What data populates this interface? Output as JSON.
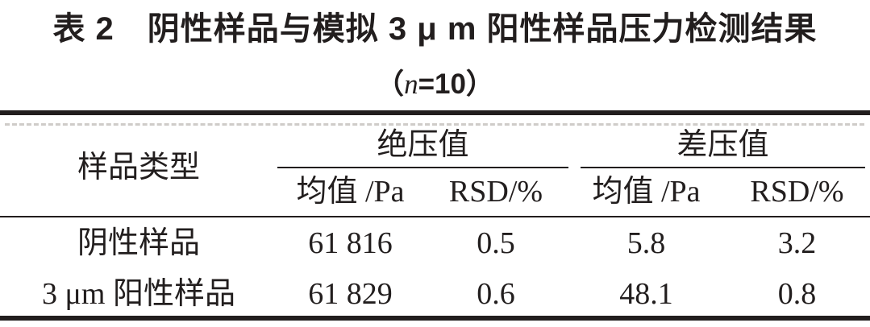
{
  "page": {
    "title": "表 2　阴性样品与模拟 3 μ m 阳性样品压力检测结果",
    "subtitle": {
      "open": "（",
      "n": "n",
      "rest": "=10）"
    }
  },
  "table": {
    "columns": {
      "sample_type": "样品类型",
      "abs_group": "绝压值",
      "diff_group": "差压值",
      "mean": "均值 /Pa",
      "rsd": "RSD/%"
    },
    "rows": [
      {
        "label": "阴性样品",
        "abs_mean": "61 816",
        "abs_rsd": "0.5",
        "diff_mean": "5.8",
        "diff_rsd": "3.2"
      },
      {
        "label": "3 μm 阳性样品",
        "abs_mean": "61 829",
        "abs_rsd": "0.6",
        "diff_mean": "48.1",
        "diff_rsd": "0.8"
      }
    ]
  },
  "colors": {
    "text": "#221e1e",
    "rule": "#221e1e",
    "background": "#ffffff"
  }
}
